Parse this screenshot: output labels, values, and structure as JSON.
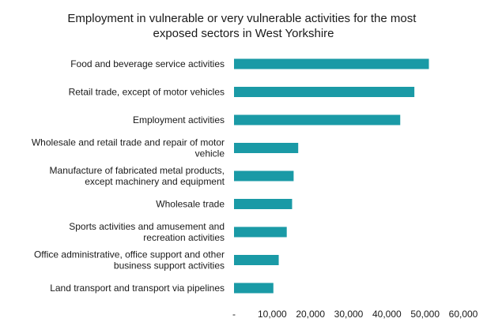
{
  "chart_data": {
    "type": "bar",
    "orientation": "horizontal",
    "title": "Employment in vulnerable or very vulnerable activities for the most exposed sectors in West Yorkshire",
    "title_lines": [
      "Employment in vulnerable or very vulnerable activities for the most",
      "exposed sectors in West Yorkshire"
    ],
    "categories": [
      [
        "Food and beverage service activities"
      ],
      [
        "Retail trade, except of motor vehicles"
      ],
      [
        "Employment activities"
      ],
      [
        "Wholesale and retail trade and repair of motor",
        "vehicle"
      ],
      [
        "Manufacture of fabricated metal products,",
        "except machinery and equipment"
      ],
      [
        "Wholesale trade"
      ],
      [
        "Sports activities and amusement and",
        "recreation activities"
      ],
      [
        "Office administrative, office support and other",
        "business support activities"
      ],
      [
        "Land transport and transport via pipelines"
      ]
    ],
    "values": [
      51000,
      47200,
      43500,
      16800,
      15600,
      15200,
      13800,
      11700,
      10300
    ],
    "xlim": [
      0,
      60000
    ],
    "tick_values": [
      0,
      10000,
      20000,
      30000,
      40000,
      50000,
      60000
    ],
    "tick_labels": [
      "-",
      "10,000",
      "20,000",
      "30,000",
      "40,000",
      "50,000",
      "60,000"
    ],
    "grid": false,
    "legend": "none",
    "bar_color": "#1a9aa6"
  }
}
